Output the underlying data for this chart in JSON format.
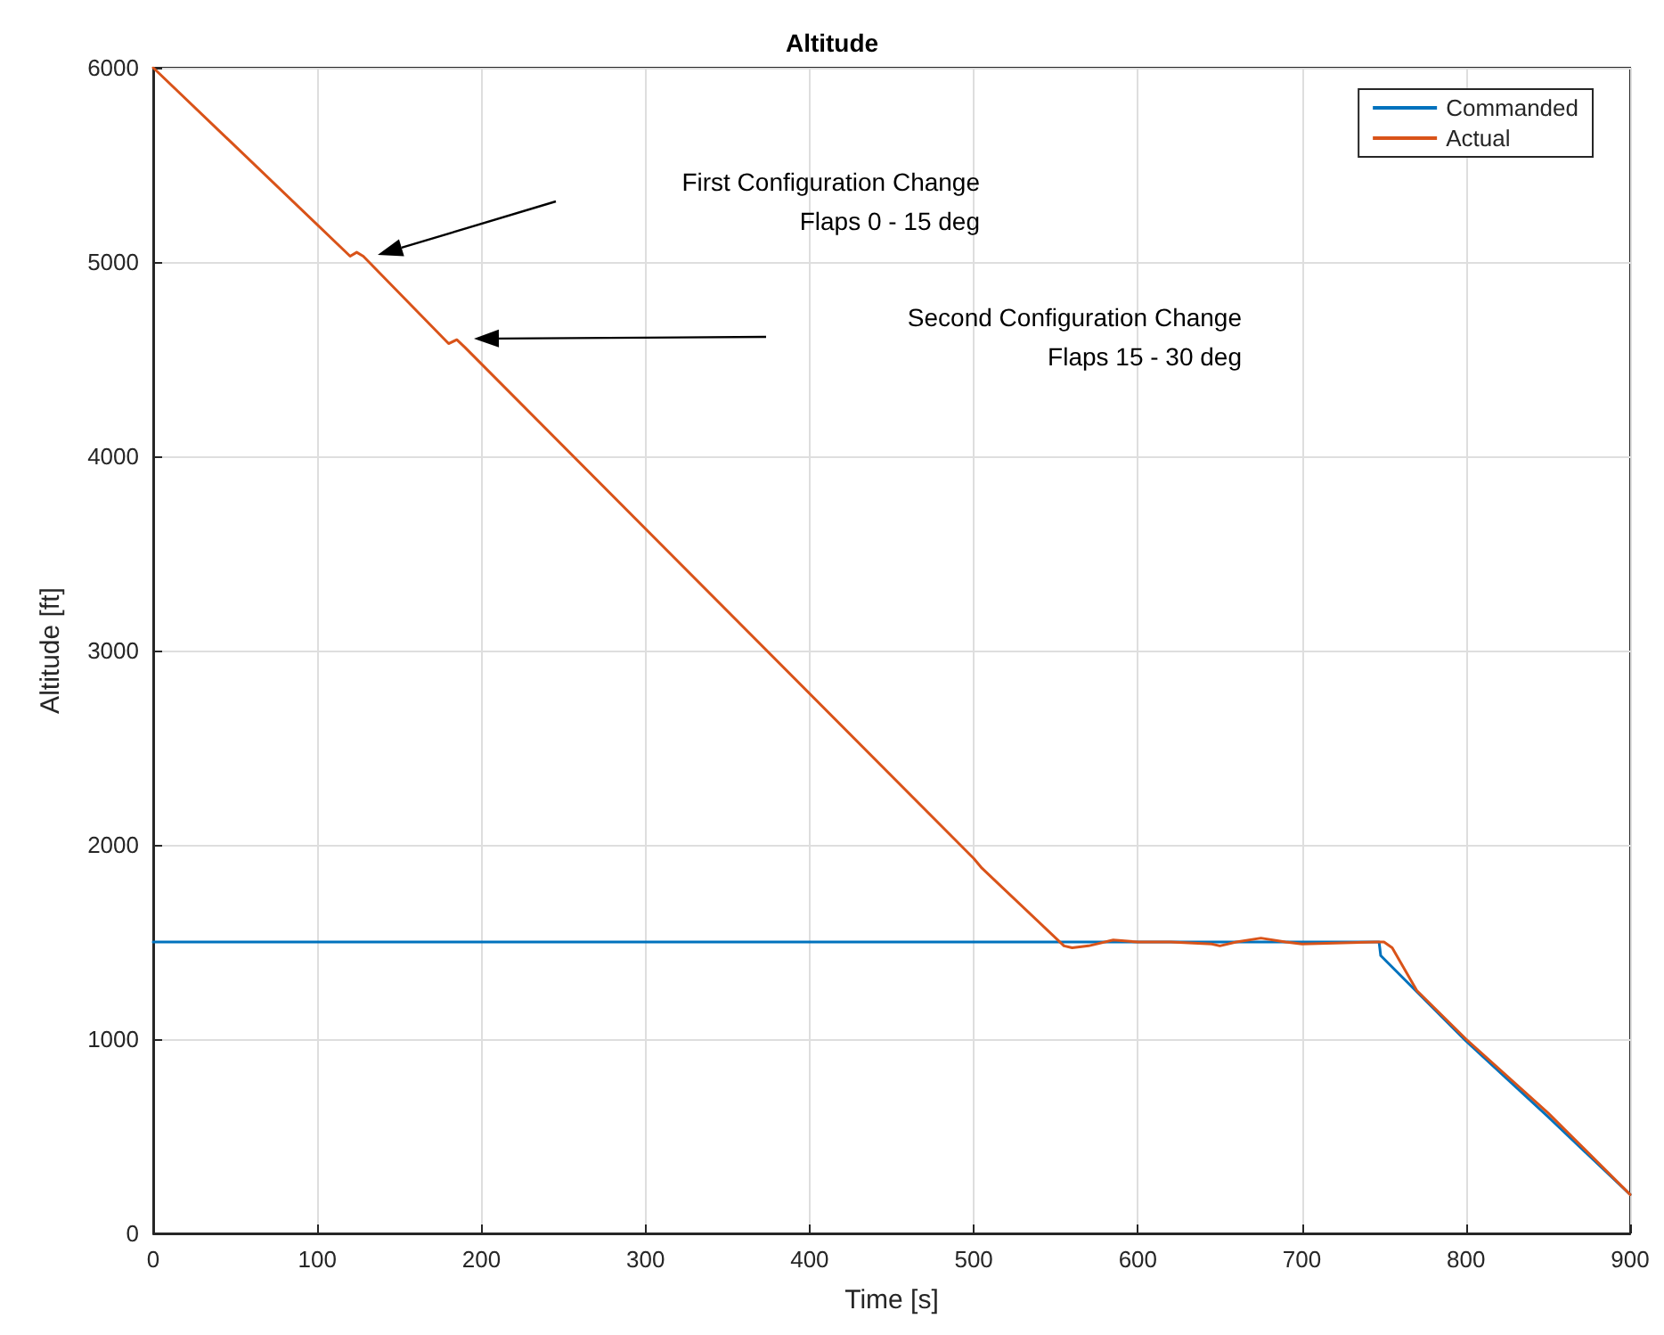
{
  "chart_data": {
    "type": "line",
    "title": "Altitude",
    "xlabel": "Time [s]",
    "ylabel": "Altitude [ft]",
    "xlim": [
      0,
      900
    ],
    "xticks": [
      0,
      100,
      200,
      300,
      400,
      500,
      600,
      700,
      800,
      900
    ],
    "ylim": [
      0,
      6000
    ],
    "yticks": [
      0,
      1000,
      2000,
      3000,
      4000,
      5000,
      6000
    ],
    "grid": true,
    "legend": "top right",
    "marker": "none",
    "line_style": "solid",
    "series": [
      {
        "name": "Commanded",
        "color": "#0072bd",
        "x": [
          0,
          747,
          748,
          800,
          850,
          900
        ],
        "values": [
          1500,
          1500,
          1430,
          990,
          600,
          200
        ]
      },
      {
        "name": "Actual",
        "color": "#d95319",
        "x": [
          0,
          120,
          124,
          128,
          180,
          185,
          190,
          500,
          505,
          515,
          555,
          560,
          570,
          585,
          600,
          620,
          645,
          650,
          660,
          675,
          690,
          700,
          745,
          750,
          755,
          770,
          800,
          850,
          900
        ],
        "values": [
          6000,
          5030,
          5050,
          5030,
          4580,
          4600,
          4560,
          1930,
          1880,
          1800,
          1480,
          1470,
          1480,
          1510,
          1500,
          1500,
          1490,
          1480,
          1500,
          1520,
          1500,
          1490,
          1500,
          1500,
          1470,
          1250,
          1000,
          620,
          200
        ]
      }
    ],
    "annotations": [
      "First Configuration Change\nFlaps 0 - 15 deg",
      "Second Configuration Change\nFlaps 15 - 30 deg"
    ]
  }
}
